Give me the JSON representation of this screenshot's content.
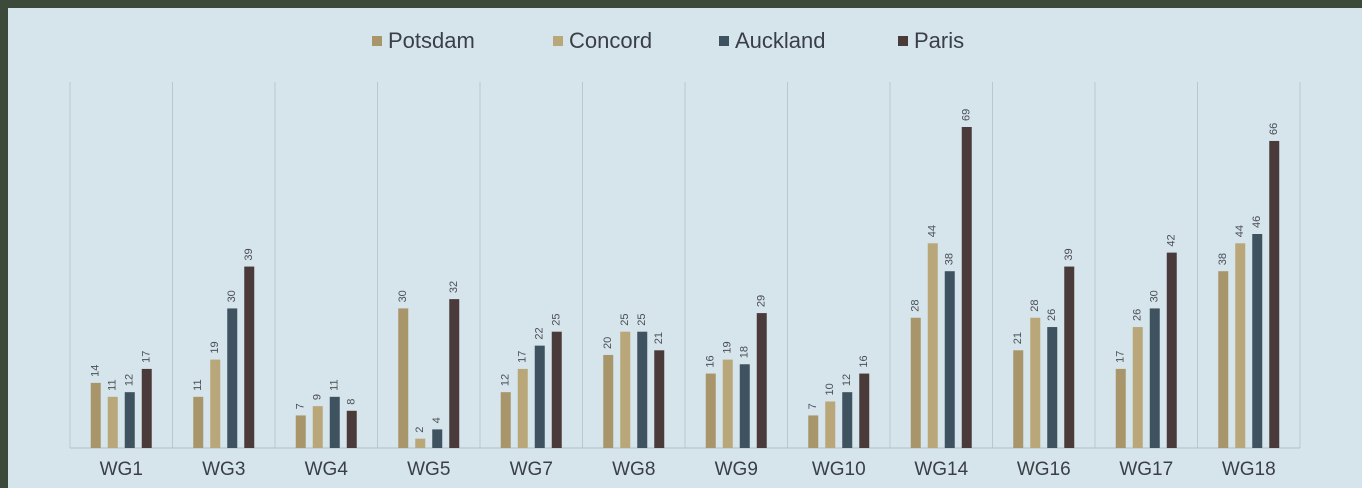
{
  "chart_data": {
    "type": "bar",
    "categories": [
      "WG1",
      "WG3",
      "WG4",
      "WG5",
      "WG7",
      "WG8",
      "WG9",
      "WG10",
      "WG14",
      "WG16",
      "WG17",
      "WG18"
    ],
    "series": [
      {
        "name": "Potsdam",
        "color": "#a8956a",
        "values": [
          14,
          11,
          7,
          30,
          12,
          20,
          16,
          7,
          28,
          21,
          17,
          38
        ]
      },
      {
        "name": "Concord",
        "color": "#b9a679",
        "values": [
          11,
          19,
          9,
          2,
          17,
          25,
          19,
          10,
          44,
          28,
          26,
          44
        ]
      },
      {
        "name": "Auckland",
        "color": "#3e5260",
        "values": [
          12,
          30,
          11,
          4,
          22,
          25,
          18,
          12,
          38,
          26,
          30,
          46
        ]
      },
      {
        "name": "Paris",
        "color": "#4a3b3a",
        "values": [
          17,
          39,
          8,
          32,
          25,
          21,
          29,
          16,
          69,
          39,
          42,
          66
        ]
      }
    ],
    "legend": "top"
  }
}
